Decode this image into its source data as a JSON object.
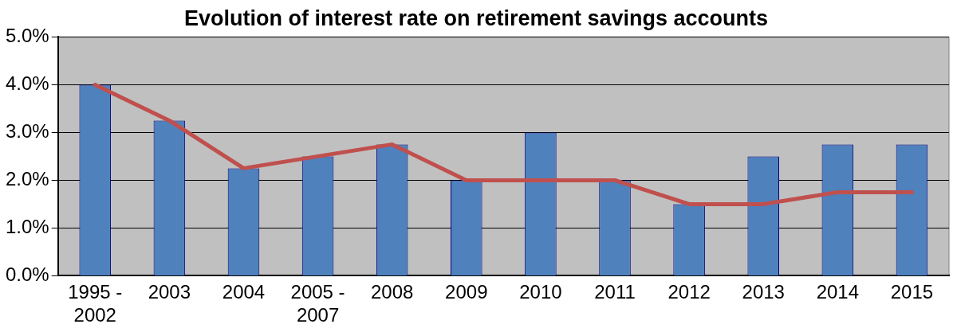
{
  "chart_data": {
    "type": "bar",
    "title": "Evolution of interest rate on retirement savings accounts",
    "categories": [
      "1995 - 2002",
      "2003",
      "2004",
      "2005 - 2007",
      "2008",
      "2009",
      "2010",
      "2011",
      "2012",
      "2013",
      "2014",
      "2015"
    ],
    "series": [
      {
        "color": "#4f81bd",
        "values": [
          4.0,
          3.25,
          2.25,
          2.5,
          2.75,
          2.0,
          3.0,
          2.0,
          1.5,
          2.5,
          2.75,
          2.75
        ]
      },
      {
        "type": "line",
        "color": "#c0504d",
        "values": [
          4.0,
          3.25,
          2.25,
          2.5,
          2.75,
          2.0,
          2.0,
          2.0,
          1.5,
          1.5,
          1.75,
          1.75
        ]
      }
    ],
    "ylim": [
      0,
      5
    ],
    "yticks": [
      {
        "value": 0,
        "label": "0.0%"
      },
      {
        "value": 1,
        "label": "1.0%"
      },
      {
        "value": 2,
        "label": "2.0%"
      },
      {
        "value": 3,
        "label": "3.0%"
      },
      {
        "value": 4,
        "label": "4.0%"
      },
      {
        "value": 5,
        "label": "5.0%"
      }
    ],
    "grid": "y",
    "legend": false,
    "marker": "none",
    "line_style": "solid"
  }
}
